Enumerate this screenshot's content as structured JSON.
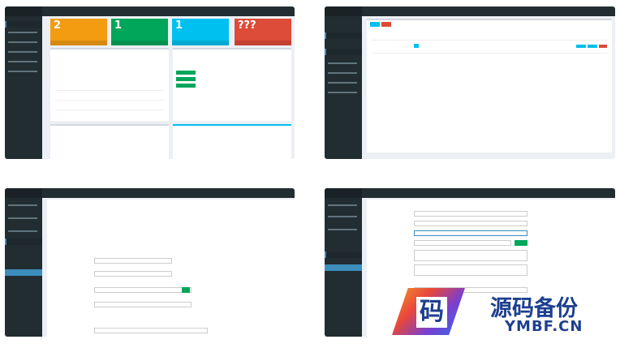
{
  "dashboard": {
    "stats": [
      "2",
      "1",
      "1",
      "???"
    ]
  },
  "watermark": {
    "logo_char": "码",
    "name": "源码备份",
    "domain": "YMBF.CN"
  }
}
